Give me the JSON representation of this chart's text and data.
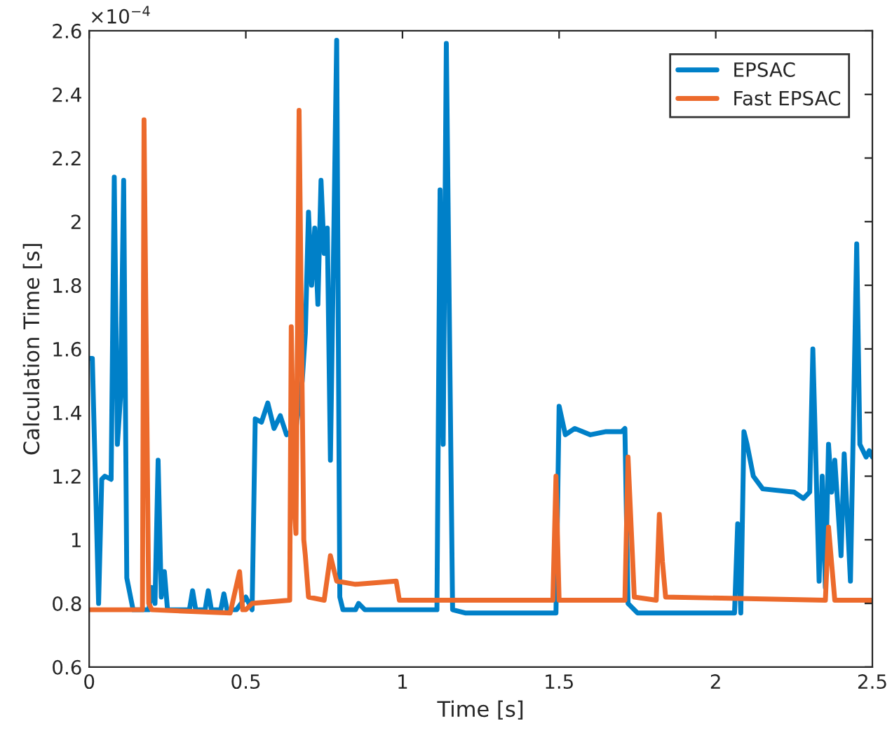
{
  "chart_data": {
    "type": "line",
    "xlabel": "Time [s]",
    "ylabel": "Calculation Time [s]",
    "annotations": [
      "×10$^{−4}$"
    ],
    "xlim": [
      0,
      2.5
    ],
    "xticks": [
      0,
      0.5,
      1,
      1.5,
      2,
      2.5
    ],
    "ylim": [
      0.6,
      2.6
    ],
    "yticks": [
      0.6,
      0.8,
      1,
      1.2,
      1.4,
      1.6,
      1.8,
      2,
      2.2,
      2.4,
      2.6
    ],
    "grid": false,
    "legend": "top right",
    "line_style": "solid",
    "marker": "none",
    "series": [
      {
        "name": "EPSAC",
        "color": "#0080c8",
        "x": [
          0,
          0.01,
          0.03,
          0.04,
          0.05,
          0.07,
          0.08,
          0.09,
          0.1,
          0.11,
          0.12,
          0.14,
          0.19,
          0.2,
          0.21,
          0.22,
          0.23,
          0.24,
          0.25,
          0.27,
          0.32,
          0.33,
          0.34,
          0.37,
          0.38,
          0.39,
          0.42,
          0.43,
          0.44,
          0.47,
          0.5,
          0.52,
          0.53,
          0.55,
          0.57,
          0.59,
          0.61,
          0.63,
          0.66,
          0.68,
          0.69,
          0.7,
          0.71,
          0.72,
          0.73,
          0.74,
          0.75,
          0.76,
          0.77,
          0.79,
          0.8,
          0.81,
          0.85,
          0.86,
          0.88,
          1.0,
          1.11,
          1.12,
          1.13,
          1.14,
          1.16,
          1.2,
          1.49,
          1.5,
          1.52,
          1.55,
          1.6,
          1.65,
          1.7,
          1.71,
          1.72,
          1.75,
          2.0,
          2.06,
          2.07,
          2.08,
          2.09,
          2.1,
          2.12,
          2.15,
          2.25,
          2.28,
          2.3,
          2.31,
          2.33,
          2.34,
          2.35,
          2.36,
          2.37,
          2.38,
          2.4,
          2.41,
          2.43,
          2.45,
          2.46,
          2.48,
          2.49,
          2.5
        ],
        "values": [
          1.57,
          1.57,
          0.8,
          1.19,
          1.2,
          1.19,
          2.14,
          1.3,
          1.45,
          2.13,
          0.88,
          0.78,
          0.78,
          0.85,
          0.8,
          1.25,
          0.82,
          0.9,
          0.78,
          0.78,
          0.78,
          0.84,
          0.78,
          0.78,
          0.84,
          0.78,
          0.78,
          0.83,
          0.78,
          0.78,
          0.82,
          0.78,
          1.38,
          1.37,
          1.43,
          1.35,
          1.39,
          1.33,
          1.35,
          1.5,
          1.65,
          2.03,
          1.8,
          1.98,
          1.74,
          2.13,
          1.9,
          1.98,
          1.25,
          2.57,
          0.82,
          0.78,
          0.78,
          0.8,
          0.78,
          0.78,
          0.78,
          2.1,
          1.3,
          2.56,
          0.78,
          0.77,
          0.77,
          1.42,
          1.33,
          1.35,
          1.33,
          1.34,
          1.34,
          1.35,
          0.8,
          0.77,
          0.77,
          0.77,
          1.05,
          0.77,
          1.34,
          1.3,
          1.2,
          1.16,
          1.15,
          1.13,
          1.15,
          1.6,
          0.87,
          1.2,
          0.85,
          1.3,
          1.15,
          1.25,
          0.95,
          1.27,
          0.87,
          1.93,
          1.3,
          1.26,
          1.28,
          1.26
        ]
      },
      {
        "name": "Fast EPSAC",
        "color": "#ec6a2c",
        "x": [
          0,
          0.17,
          0.175,
          0.19,
          0.2,
          0.45,
          0.48,
          0.49,
          0.5,
          0.52,
          0.64,
          0.645,
          0.655,
          0.66,
          0.67,
          0.685,
          0.69,
          0.7,
          0.75,
          0.77,
          0.79,
          0.85,
          0.98,
          0.99,
          1.48,
          1.49,
          1.5,
          1.71,
          1.72,
          1.74,
          1.81,
          1.82,
          1.83,
          1.84,
          2.35,
          2.36,
          2.38,
          2.5
        ],
        "values": [
          0.78,
          0.78,
          2.32,
          0.8,
          0.78,
          0.77,
          0.9,
          0.78,
          0.78,
          0.8,
          0.81,
          1.67,
          1.1,
          1.02,
          2.35,
          1.0,
          0.95,
          0.82,
          0.81,
          0.95,
          0.87,
          0.86,
          0.87,
          0.81,
          0.81,
          1.2,
          0.81,
          0.81,
          1.26,
          0.82,
          0.81,
          1.08,
          0.93,
          0.82,
          0.81,
          1.04,
          0.81,
          0.81
        ]
      }
    ]
  }
}
